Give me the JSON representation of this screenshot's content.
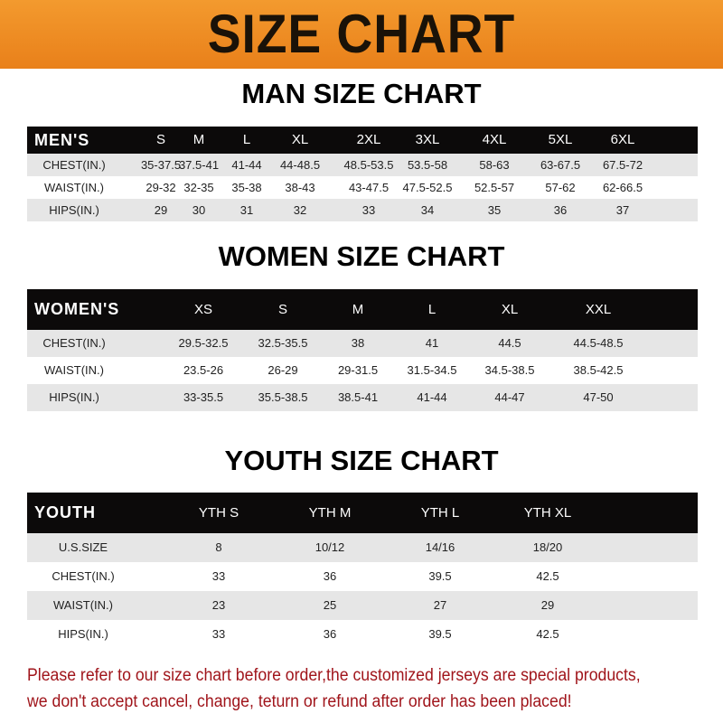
{
  "banner": {
    "title": "SIZE CHART",
    "color": "#ee8a22"
  },
  "men": {
    "title": "MAN SIZE CHART",
    "header": [
      "MEN'S",
      "S",
      "M",
      "L",
      "XL",
      "2XL",
      "3XL",
      "4XL",
      "5XL",
      "6XL"
    ],
    "rows": [
      [
        "CHEST(IN.)",
        "35-37.5",
        "37.5-41",
        "41-44",
        "44-48.5",
        "48.5-53.5",
        "53.5-58",
        "58-63",
        "63-67.5",
        "67.5-72"
      ],
      [
        "WAIST(IN.)",
        "29-32",
        "32-35",
        "35-38",
        "38-43",
        "43-47.5",
        "47.5-52.5",
        "52.5-57",
        "57-62",
        "62-66.5"
      ],
      [
        "HIPS(IN.)",
        "29",
        "30",
        "31",
        "32",
        "33",
        "34",
        "35",
        "36",
        "37"
      ]
    ]
  },
  "women": {
    "title": "WOMEN SIZE CHART",
    "header": [
      "WOMEN'S",
      "XS",
      "S",
      "M",
      "L",
      "XL",
      "XXL"
    ],
    "rows": [
      [
        "CHEST(IN.)",
        "29.5-32.5",
        "32.5-35.5",
        "38",
        "41",
        "44.5",
        "44.5-48.5"
      ],
      [
        "WAIST(IN.)",
        "23.5-26",
        "26-29",
        "29-31.5",
        "31.5-34.5",
        "34.5-38.5",
        "38.5-42.5"
      ],
      [
        "HIPS(IN.)",
        "33-35.5",
        "35.5-38.5",
        "38.5-41",
        "41-44",
        "44-47",
        "47-50"
      ]
    ]
  },
  "youth": {
    "title": "YOUTH SIZE CHART",
    "header": [
      "YOUTH",
      "YTH S",
      "YTH M",
      "YTH L",
      "YTH XL"
    ],
    "rows": [
      [
        "U.S.SIZE",
        "8",
        "10/12",
        "14/16",
        "18/20"
      ],
      [
        "CHEST(IN.)",
        "33",
        "36",
        "39.5",
        "42.5"
      ],
      [
        "WAIST(IN.)",
        "23",
        "25",
        "27",
        "29"
      ],
      [
        "HIPS(IN.)",
        "33",
        "36",
        "39.5",
        "42.5"
      ]
    ]
  },
  "note": {
    "line1": "Please refer to our size chart before order,the customized jerseys are special products,",
    "line2": "we don't accept cancel, change, teturn or refund after order has been placed!",
    "color": "#a0151b"
  }
}
